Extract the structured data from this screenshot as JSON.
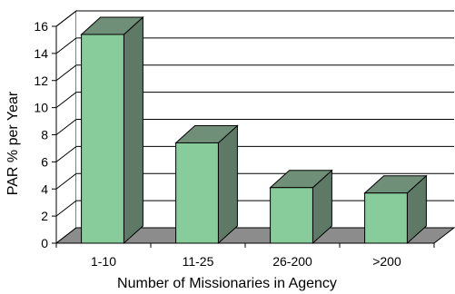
{
  "chart_data": {
    "type": "bar",
    "style": "3d-column",
    "categories": [
      "1-10",
      "11-25",
      "26-200",
      ">200"
    ],
    "values": [
      15.4,
      7.4,
      4.1,
      3.7
    ],
    "xlabel": "Number of Missionaries in Agency",
    "ylabel": "PAR % per Year",
    "ylim": [
      0,
      16
    ],
    "yticks": [
      "0",
      "2",
      "4",
      "6",
      "8",
      "10",
      "12",
      "14",
      "16"
    ],
    "grid": true,
    "legend": "none",
    "colors": {
      "bar_front": "#87cc9a",
      "bar_side": "#5e7a66",
      "bar_top": "#6f8f78",
      "floor": "#8c8c8c",
      "gridline": "#000000"
    }
  }
}
